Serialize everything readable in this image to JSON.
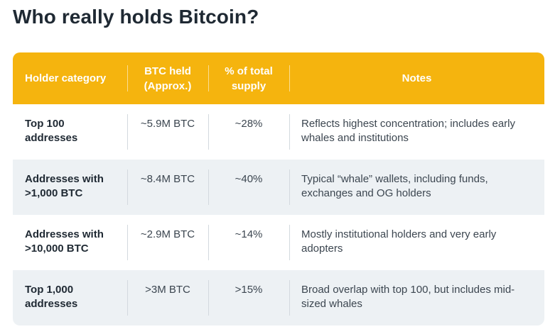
{
  "page": {
    "title": "Who really holds Bitcoin?"
  },
  "table": {
    "headers": [
      "Holder category",
      "BTC held (Approx.)",
      "% of total supply",
      "Notes"
    ],
    "rows": [
      {
        "category": "Top 100 addresses",
        "btc_held": "~5.9M BTC",
        "supply_pct": "~28%",
        "notes": "Reflects highest concentration; includes early whales and institutions"
      },
      {
        "category": "Addresses with >1,000 BTC",
        "btc_held": "~8.4M BTC",
        "supply_pct": "~40%",
        "notes": "Typical “whale” wallets, including funds, exchanges and OG holders"
      },
      {
        "category": "Addresses with >10,000 BTC",
        "btc_held": "~2.9M BTC",
        "supply_pct": "~14%",
        "notes": "Mostly institutional holders and very early adopters"
      },
      {
        "category": "Top 1,000 addresses",
        "btc_held": ">3M BTC",
        "supply_pct": ">15%",
        "notes": "Broad overlap with top 100, but includes mid-sized whales"
      }
    ]
  },
  "colors": {
    "header_bg": "#f5b40e",
    "alt_row_bg": "#edf1f4",
    "text": "#1f2933"
  }
}
